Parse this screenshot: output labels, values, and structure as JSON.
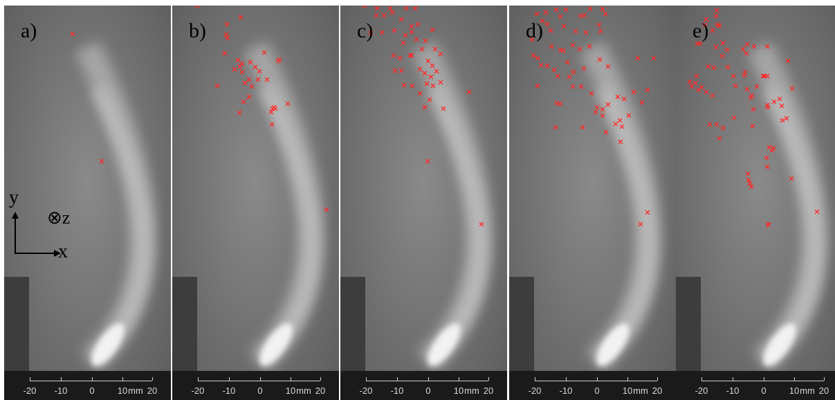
{
  "panels": [
    {
      "label": "a)",
      "markers": [
        [
          99,
          49
        ],
        [
          141,
          233
        ]
      ]
    },
    {
      "label": "b)",
      "markers": [
        [
          36,
          8
        ],
        [
          99,
          25
        ],
        [
          79,
          35
        ],
        [
          78,
          50
        ],
        [
          80,
          55
        ],
        [
          76,
          77
        ],
        [
          95,
          87
        ],
        [
          101,
          92
        ],
        [
          113,
          90
        ],
        [
          120,
          97
        ],
        [
          126,
          103
        ],
        [
          133,
          76
        ],
        [
          90,
          100
        ],
        [
          98,
          96
        ],
        [
          101,
          104
        ],
        [
          105,
          120
        ],
        [
          111,
          115
        ],
        [
          124,
          115
        ],
        [
          65,
          124
        ],
        [
          115,
          125
        ],
        [
          137,
          115
        ],
        [
          111,
          140
        ],
        [
          103,
          147
        ],
        [
          97,
          163
        ],
        [
          145,
          157
        ],
        [
          147,
          155
        ],
        [
          149,
          157
        ],
        [
          143,
          162
        ],
        [
          167,
          150
        ],
        [
          144,
          180
        ],
        [
          223,
          303
        ],
        [
          155,
          86
        ],
        [
          153,
          88
        ]
      ]
    },
    {
      "label": "c)",
      "markers": [
        [
          35,
          8
        ],
        [
          53,
          12
        ],
        [
          72,
          12
        ],
        [
          95,
          12
        ],
        [
          108,
          12
        ],
        [
          52,
          22
        ],
        [
          63,
          22
        ],
        [
          75,
          18
        ],
        [
          88,
          28
        ],
        [
          103,
          38
        ],
        [
          112,
          35
        ],
        [
          133,
          43
        ],
        [
          44,
          48
        ],
        [
          60,
          47
        ],
        [
          78,
          44
        ],
        [
          103,
          46
        ],
        [
          94,
          51
        ],
        [
          110,
          57
        ],
        [
          91,
          62
        ],
        [
          101,
          80
        ],
        [
          123,
          59
        ],
        [
          118,
          71
        ],
        [
          137,
          71
        ],
        [
          127,
          88
        ],
        [
          133,
          95
        ],
        [
          139,
          103
        ],
        [
          145,
          78
        ],
        [
          77,
          80
        ],
        [
          86,
          84
        ],
        [
          103,
          80
        ],
        [
          79,
          102
        ],
        [
          88,
          102
        ],
        [
          115,
          100
        ],
        [
          122,
          106
        ],
        [
          131,
          111
        ],
        [
          134,
          124
        ],
        [
          145,
          119
        ],
        [
          92,
          123
        ],
        [
          104,
          124
        ],
        [
          125,
          121
        ],
        [
          115,
          135
        ],
        [
          129,
          144
        ],
        [
          122,
          155
        ],
        [
          149,
          157
        ],
        [
          186,
          133
        ],
        [
          126,
          233
        ],
        [
          204,
          324
        ]
      ]
    },
    {
      "label": "d)",
      "markers": [
        [
          40,
          20
        ],
        [
          53,
          18
        ],
        [
          68,
          14
        ],
        [
          82,
          14
        ],
        [
          103,
          23
        ],
        [
          109,
          22
        ],
        [
          117,
          13
        ],
        [
          135,
          13
        ],
        [
          139,
          20
        ],
        [
          48,
          30
        ],
        [
          55,
          35
        ],
        [
          60,
          44
        ],
        [
          74,
          24
        ],
        [
          79,
          38
        ],
        [
          96,
          45
        ],
        [
          111,
          47
        ],
        [
          130,
          36
        ],
        [
          132,
          45
        ],
        [
          61,
          67
        ],
        [
          74,
          72
        ],
        [
          92,
          65
        ],
        [
          102,
          71
        ],
        [
          116,
          67
        ],
        [
          33,
          57
        ],
        [
          35,
          80
        ],
        [
          41,
          84
        ],
        [
          46,
          94
        ],
        [
          55,
          95
        ],
        [
          65,
          101
        ],
        [
          78,
          73
        ],
        [
          84,
          90
        ],
        [
          93,
          104
        ],
        [
          108,
          99
        ],
        [
          131,
          86
        ],
        [
          143,
          96
        ],
        [
          41,
          124
        ],
        [
          69,
          149
        ],
        [
          74,
          150
        ],
        [
          92,
          125
        ],
        [
          104,
          125
        ],
        [
          119,
          135
        ],
        [
          127,
          155
        ],
        [
          135,
          158
        ],
        [
          143,
          151
        ],
        [
          157,
          140
        ],
        [
          166,
          143
        ],
        [
          180,
          133
        ],
        [
          200,
          130
        ],
        [
          192,
          148
        ],
        [
          209,
          84
        ],
        [
          186,
          84
        ],
        [
          125,
          162
        ],
        [
          135,
          167
        ],
        [
          160,
          174
        ],
        [
          173,
          167
        ],
        [
          154,
          179
        ],
        [
          163,
          183
        ],
        [
          140,
          191
        ],
        [
          161,
          205
        ],
        [
          67,
          184
        ],
        [
          106,
          184
        ],
        [
          200,
          307
        ],
        [
          190,
          324
        ],
        [
          70,
          110
        ],
        [
          87,
          111
        ]
      ]
    },
    {
      "label": "e)",
      "markers": [
        [
          59,
          15
        ],
        [
          58,
          23
        ],
        [
          44,
          28
        ],
        [
          42,
          36
        ],
        [
          60,
          36
        ],
        [
          31,
          63
        ],
        [
          35,
          63
        ],
        [
          63,
          37
        ],
        [
          53,
          44
        ],
        [
          68,
          62
        ],
        [
          74,
          72
        ],
        [
          58,
          68
        ],
        [
          103,
          64
        ],
        [
          97,
          71
        ],
        [
          102,
          77
        ],
        [
          113,
          67
        ],
        [
          132,
          67
        ],
        [
          162,
          88
        ],
        [
          55,
          98
        ],
        [
          75,
          97
        ],
        [
          83,
          110
        ],
        [
          100,
          104
        ],
        [
          99,
          109
        ],
        [
          126,
          110
        ],
        [
          128,
          110
        ],
        [
          132,
          110
        ],
        [
          28,
          120
        ],
        [
          33,
          130
        ],
        [
          37,
          126
        ],
        [
          44,
          133
        ],
        [
          53,
          138
        ],
        [
          86,
          124
        ],
        [
          103,
          129
        ],
        [
          117,
          125
        ],
        [
          110,
          138
        ],
        [
          108,
          141
        ],
        [
          168,
          128
        ],
        [
          142,
          147
        ],
        [
          150,
          143
        ],
        [
          153,
          153
        ],
        [
          132,
          152
        ],
        [
          112,
          158
        ],
        [
          133,
          155
        ],
        [
          49,
          180
        ],
        [
          59,
          180
        ],
        [
          68,
          185
        ],
        [
          63,
          200
        ],
        [
          84,
          170
        ],
        [
          111,
          182
        ],
        [
          154,
          174
        ],
        [
          160,
          171
        ],
        [
          135,
          213
        ],
        [
          131,
          228
        ],
        [
          141,
          214
        ],
        [
          139,
          217
        ],
        [
          132,
          241
        ],
        [
          104,
          251
        ],
        [
          107,
          265
        ],
        [
          109,
          270
        ],
        [
          105,
          260
        ],
        [
          134,
          325
        ],
        [
          133,
          324
        ],
        [
          167,
          258
        ],
        [
          204,
          306
        ],
        [
          30,
          110
        ],
        [
          20,
          118
        ],
        [
          23,
          125
        ],
        [
          47,
          96
        ],
        [
          67,
          81
        ]
      ]
    }
  ],
  "axis": {
    "ticks": [
      "-20",
      "-10",
      "0",
      "10",
      "20"
    ],
    "unit": "mm"
  },
  "coords": {
    "y": "y",
    "x": "x",
    "z": "⊗z"
  }
}
